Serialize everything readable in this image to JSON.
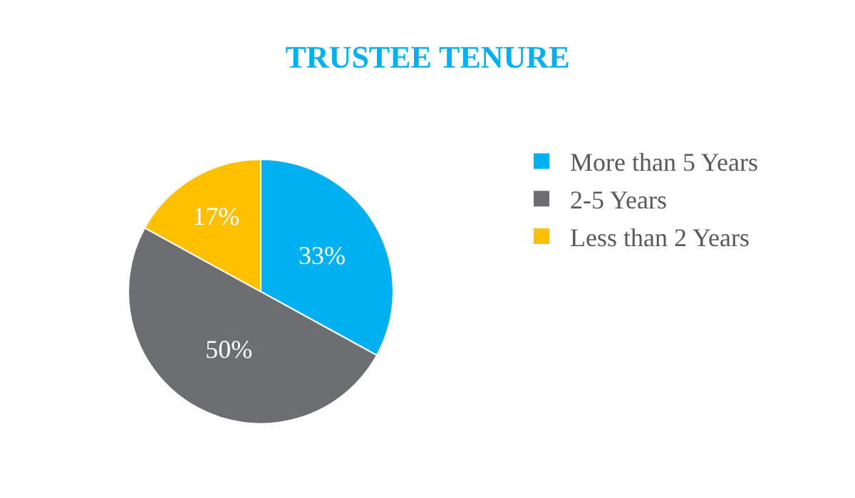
{
  "chart_data": {
    "type": "pie",
    "title": "TRUSTEE TENURE",
    "categories": [
      "More than 5 Years",
      "2-5 Years",
      "Less than 2 Years"
    ],
    "values": [
      33,
      50,
      17
    ],
    "colors": [
      "#00b0f0",
      "#6d6e71",
      "#ffc000"
    ],
    "value_labels": [
      "33%",
      "50%",
      "17%"
    ],
    "legend": "right"
  }
}
